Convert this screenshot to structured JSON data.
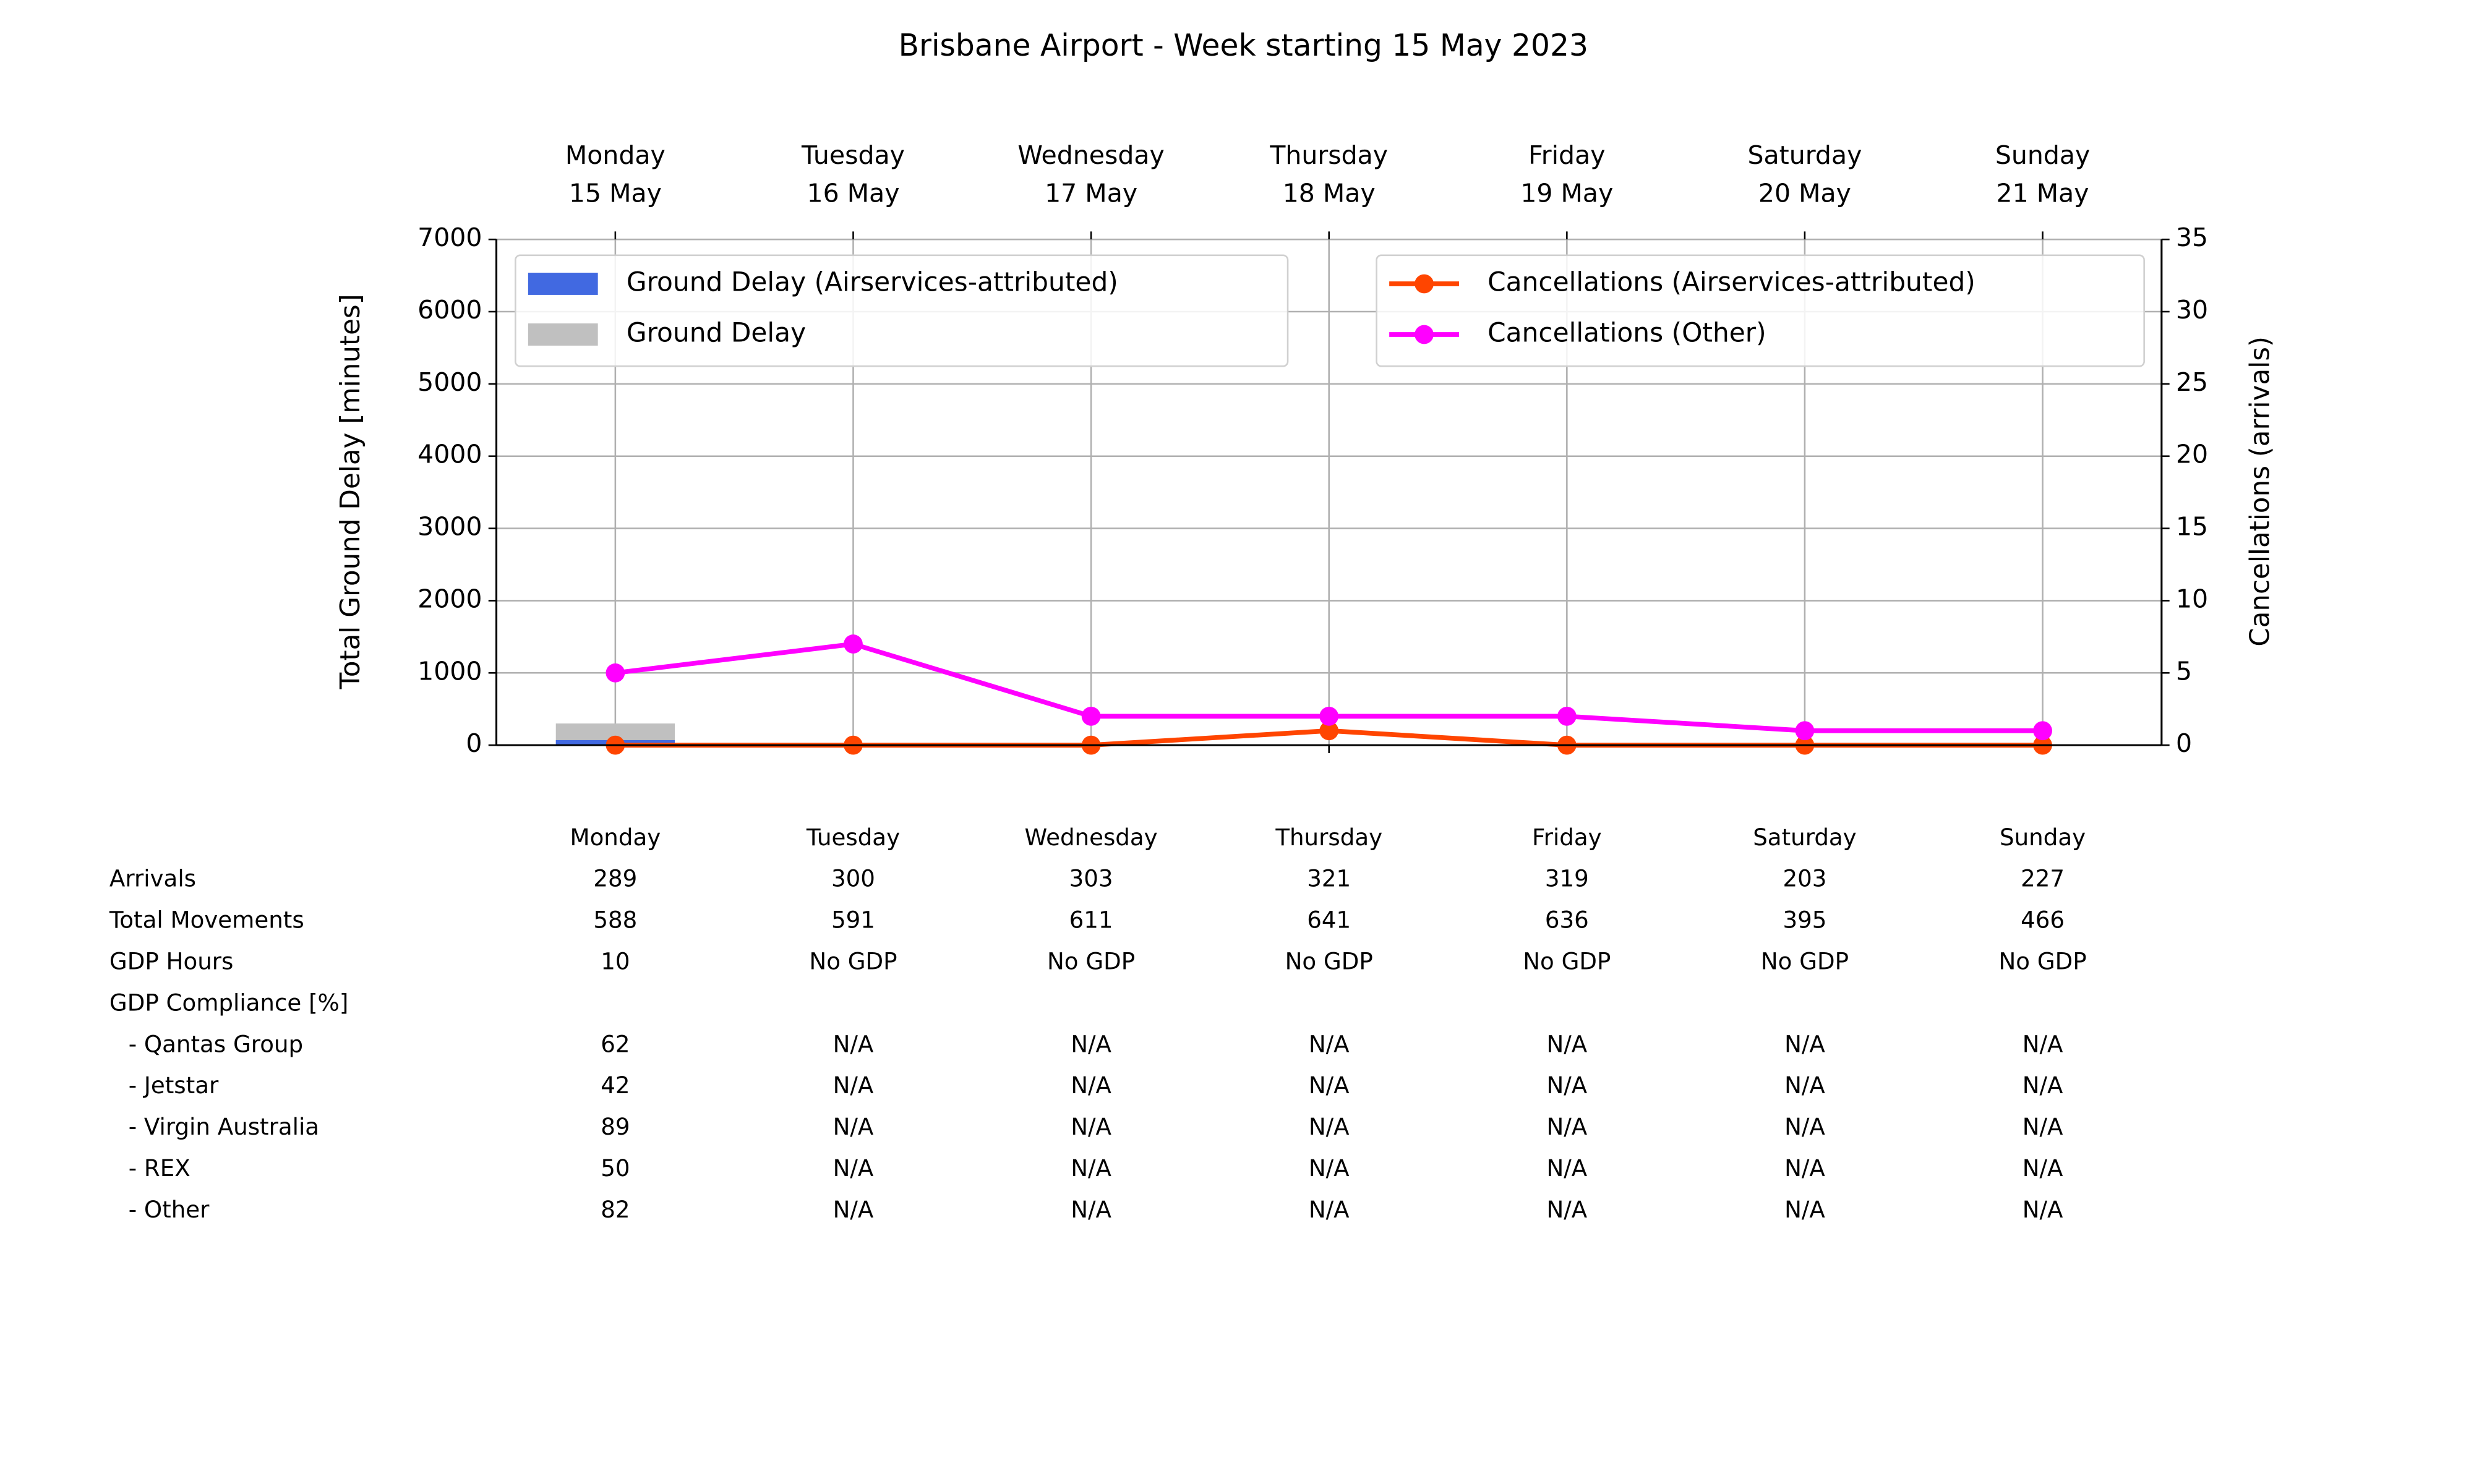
{
  "chart_data": {
    "type": "bar",
    "title": "Brisbane Airport - Week starting 15 May 2023",
    "categories": [
      [
        "Monday",
        "15 May"
      ],
      [
        "Tuesday",
        "16 May"
      ],
      [
        "Wednesday",
        "17 May"
      ],
      [
        "Thursday",
        "18 May"
      ],
      [
        "Friday",
        "19 May"
      ],
      [
        "Saturday",
        "20 May"
      ],
      [
        "Sunday",
        "21 May"
      ]
    ],
    "ylabel": "Total Ground Delay [minutes]",
    "y2label": "Cancellations (arrivals)",
    "ylim": [
      0,
      7000
    ],
    "yticks": [
      0,
      1000,
      2000,
      3000,
      4000,
      5000,
      6000,
      7000
    ],
    "y2lim": [
      0,
      35
    ],
    "y2ticks": [
      0,
      5,
      10,
      15,
      20,
      25,
      30,
      35
    ],
    "grid": true,
    "series": [
      {
        "name": "Ground Delay (Airservices-attributed)",
        "type": "bar",
        "color": "#4169e1",
        "values": [
          70,
          0,
          0,
          0,
          0,
          0,
          0
        ]
      },
      {
        "name": "Ground Delay",
        "type": "bar",
        "color": "#c0c0c0",
        "values": [
          300,
          0,
          0,
          0,
          0,
          0,
          0
        ]
      },
      {
        "name": "Cancellations (Airservices-attributed)",
        "type": "line",
        "axis": "y2",
        "color": "#ff4500",
        "values": [
          0,
          0,
          0,
          1,
          0,
          0,
          0
        ]
      },
      {
        "name": "Cancellations (Other)",
        "type": "line",
        "axis": "y2",
        "color": "#ff00ff",
        "values": [
          5,
          7,
          2,
          2,
          2,
          1,
          1
        ]
      }
    ]
  },
  "table": {
    "header": [
      "Monday",
      "Tuesday",
      "Wednesday",
      "Thursday",
      "Friday",
      "Saturday",
      "Sunday"
    ],
    "rows": [
      {
        "label": "Arrivals",
        "cells": [
          "289",
          "300",
          "303",
          "321",
          "319",
          "203",
          "227"
        ]
      },
      {
        "label": "Total Movements",
        "cells": [
          "588",
          "591",
          "611",
          "641",
          "636",
          "395",
          "466"
        ]
      },
      {
        "label": "GDP Hours",
        "cells": [
          "10",
          "No GDP",
          "No GDP",
          "No GDP",
          "No GDP",
          "No GDP",
          "No GDP"
        ]
      },
      {
        "label": "GDP Compliance [%]",
        "cells": []
      },
      {
        "label": "- Qantas Group",
        "cells": [
          "62",
          "N/A",
          "N/A",
          "N/A",
          "N/A",
          "N/A",
          "N/A"
        ]
      },
      {
        "label": "- Jetstar",
        "cells": [
          "42",
          "N/A",
          "N/A",
          "N/A",
          "N/A",
          "N/A",
          "N/A"
        ]
      },
      {
        "label": "- Virgin Australia",
        "cells": [
          "89",
          "N/A",
          "N/A",
          "N/A",
          "N/A",
          "N/A",
          "N/A"
        ]
      },
      {
        "label": "- REX",
        "cells": [
          "50",
          "N/A",
          "N/A",
          "N/A",
          "N/A",
          "N/A",
          "N/A"
        ]
      },
      {
        "label": "- Other",
        "cells": [
          "82",
          "N/A",
          "N/A",
          "N/A",
          "N/A",
          "N/A",
          "N/A"
        ]
      }
    ]
  }
}
